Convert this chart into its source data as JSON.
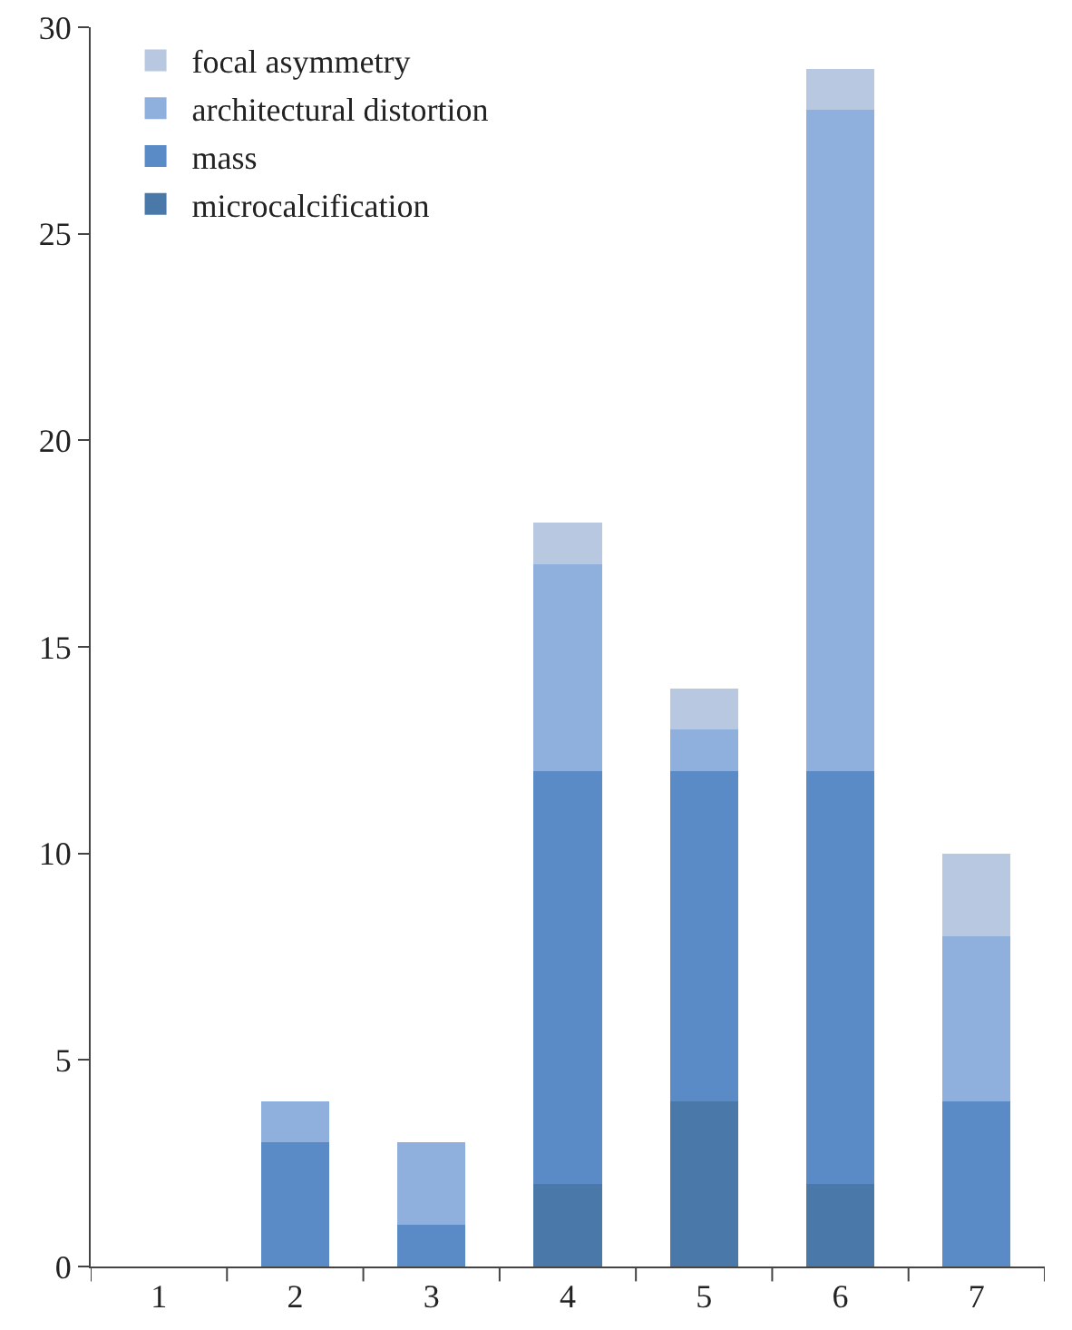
{
  "chart_data": {
    "type": "bar",
    "stacked": true,
    "categories": [
      "1",
      "2",
      "3",
      "4",
      "5",
      "6",
      "7"
    ],
    "series": [
      {
        "name": "microcalcification",
        "color": "#4a78a8",
        "values": [
          0,
          0,
          0,
          2,
          4,
          2,
          0
        ]
      },
      {
        "name": "mass",
        "color": "#5b8bc6",
        "values": [
          0,
          3,
          1,
          10,
          8,
          10,
          4
        ]
      },
      {
        "name": "architectural distortion",
        "color": "#8fb0dc",
        "values": [
          0,
          1,
          2,
          5,
          1,
          16,
          4
        ]
      },
      {
        "name": "focal asymmetry",
        "color": "#b8c8e0",
        "values": [
          0,
          0,
          0,
          1,
          1,
          1,
          2
        ]
      }
    ],
    "ylim": [
      0,
      30
    ],
    "yticks": [
      0,
      5,
      10,
      15,
      20,
      25,
      30
    ],
    "grid": false,
    "legend": "top left"
  }
}
